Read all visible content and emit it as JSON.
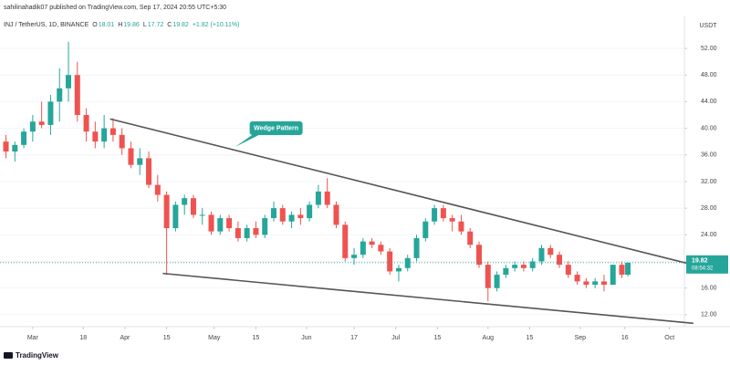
{
  "chart_data": {
    "type": "candlestick",
    "publisher": "sahilinahadik07 published on TradingView.com, Sep 17, 2024 20:55 UTC+5:30",
    "symbol": "INJ / TetherUS, 1D, BINANCE",
    "ohlc_letters": [
      "O",
      "H",
      "L",
      "C"
    ],
    "change": "+1.82 (+10.11%)",
    "currency": "USDT",
    "countdown": "08:54:32",
    "logo": "TradingView",
    "up_color": "#26a69a",
    "down_color": "#ef5350",
    "x": [
      -9,
      -6,
      -3,
      0,
      3,
      6,
      9,
      12,
      15,
      18,
      21,
      24,
      27,
      30,
      33,
      36,
      39,
      42,
      45,
      48,
      51,
      54,
      57,
      60,
      63,
      66,
      69,
      72,
      75,
      78,
      81,
      84,
      87,
      90,
      93,
      96,
      99,
      102,
      105,
      108,
      111,
      114,
      117,
      120,
      123,
      126,
      129,
      132,
      135,
      138,
      141,
      144,
      147,
      150,
      153,
      156,
      159,
      162,
      165,
      168,
      171,
      174,
      177,
      180,
      183,
      186,
      189,
      192,
      195,
      198,
      200
    ],
    "open": [
      38,
      36.5,
      37.5,
      39.5,
      41,
      40.5,
      44,
      46,
      48,
      42,
      39.5,
      38,
      40,
      39,
      37,
      34.5,
      35.5,
      31.5,
      30,
      25,
      28.5,
      29.5,
      27,
      27,
      24.5,
      26.5,
      25,
      23.5,
      25,
      24,
      26.5,
      28,
      26,
      27,
      26.5,
      28.5,
      30.5,
      28.5,
      25.5,
      20.5,
      21,
      23,
      22.5,
      21.5,
      18.5,
      19,
      20.5,
      23.5,
      26,
      28,
      26.5,
      26,
      24.5,
      22.5,
      19.5,
      16,
      18,
      19,
      19.5,
      19,
      20,
      22,
      21,
      19.5,
      18,
      17,
      16.5,
      17,
      16.5,
      19.5,
      18.01
    ],
    "high": [
      39,
      38,
      40,
      42,
      44,
      45,
      49,
      53,
      50,
      43,
      41,
      42,
      41.5,
      40,
      38,
      37,
      36.5,
      33,
      30.5,
      29,
      30,
      30,
      28,
      27.5,
      27,
      27,
      26,
      25.5,
      26,
      27,
      29,
      28.5,
      27.5,
      28,
      29,
      31.5,
      32.5,
      29,
      26,
      22,
      23.5,
      23.5,
      23,
      22,
      19.5,
      21,
      24,
      26.5,
      28.5,
      28.5,
      27,
      27,
      25,
      23,
      20,
      18.5,
      19.5,
      20,
      20,
      20.5,
      22.5,
      22.5,
      21.5,
      20,
      18.5,
      17.5,
      17.5,
      18,
      19.5,
      20,
      19.86
    ],
    "low": [
      35.5,
      35,
      37,
      38,
      40,
      39,
      41,
      44,
      41,
      38,
      37,
      37,
      38,
      36,
      34,
      33,
      31,
      29,
      18,
      24.5,
      27,
      26.5,
      25.5,
      24,
      24,
      24.5,
      23,
      23,
      23.5,
      23.5,
      26,
      25.5,
      25,
      25.5,
      26,
      28,
      28,
      25,
      20,
      19.5,
      20.5,
      22,
      21,
      18,
      17,
      18.5,
      20,
      23,
      25.5,
      26,
      24.5,
      24,
      22,
      19,
      14,
      15.5,
      17.5,
      18.5,
      18.5,
      18.5,
      19.5,
      20.5,
      19,
      17.5,
      16.5,
      16,
      16,
      15.5,
      16.5,
      17.5,
      17.72
    ],
    "close": [
      36.5,
      37.5,
      39.5,
      41,
      40.5,
      44,
      46,
      48,
      42,
      39.5,
      38,
      40,
      39,
      37,
      34.5,
      35.5,
      31.5,
      30,
      25,
      28.5,
      29.5,
      27,
      27,
      24.5,
      26.5,
      25,
      23.5,
      25,
      24,
      26.5,
      28,
      26,
      27,
      26.5,
      28.5,
      30.5,
      28.5,
      25.5,
      20.5,
      21,
      23,
      22.5,
      21.5,
      18.5,
      19,
      20.5,
      23.5,
      26,
      28,
      26.5,
      26,
      24.5,
      22.5,
      19.5,
      16,
      18,
      19,
      19.5,
      19,
      20,
      22,
      21,
      19.5,
      18,
      17,
      16.5,
      17,
      16.5,
      19.5,
      18.01,
      19.82
    ],
    "trendlines": [
      {
        "x": [
          26,
          221
        ],
        "y": [
          41.4,
          19.6
        ]
      },
      {
        "x": [
          43.7,
          222
        ],
        "y": [
          18.2,
          10.7
        ]
      }
    ],
    "annotation": {
      "text": "Wedge Pattern",
      "x": 68,
      "y": 37.2
    },
    "xlim": [
      -11,
      219
    ],
    "ylim": [
      10.2,
      56.8
    ],
    "xticks": [
      {
        "value": 0,
        "label": "Mar"
      },
      {
        "value": 17,
        "label": "18"
      },
      {
        "value": 31,
        "label": "Apr"
      },
      {
        "value": 45,
        "label": "15"
      },
      {
        "value": 61,
        "label": "May"
      },
      {
        "value": 75,
        "label": "15"
      },
      {
        "value": 92,
        "label": "Jun"
      },
      {
        "value": 108,
        "label": "17"
      },
      {
        "value": 122,
        "label": "Jul"
      },
      {
        "value": 136,
        "label": "15"
      },
      {
        "value": 153,
        "label": "Aug"
      },
      {
        "value": 167,
        "label": "15"
      },
      {
        "value": 184,
        "label": "Sep"
      },
      {
        "value": 199,
        "label": "16"
      },
      {
        "value": 214,
        "label": "Oct"
      }
    ],
    "yticks": [
      {
        "value": 12,
        "label": "12.00"
      },
      {
        "value": 16,
        "label": "16.00"
      },
      {
        "value": 20,
        "label": "20.00"
      },
      {
        "value": 24,
        "label": "24.00"
      },
      {
        "value": 28,
        "label": "28.00"
      },
      {
        "value": 32,
        "label": "32.00"
      },
      {
        "value": 36,
        "label": "36.00"
      },
      {
        "value": 40,
        "label": "40.00"
      },
      {
        "value": 44,
        "label": "44.00"
      },
      {
        "value": 48,
        "label": "48.00"
      },
      {
        "value": 52,
        "label": "52.00"
      }
    ]
  }
}
